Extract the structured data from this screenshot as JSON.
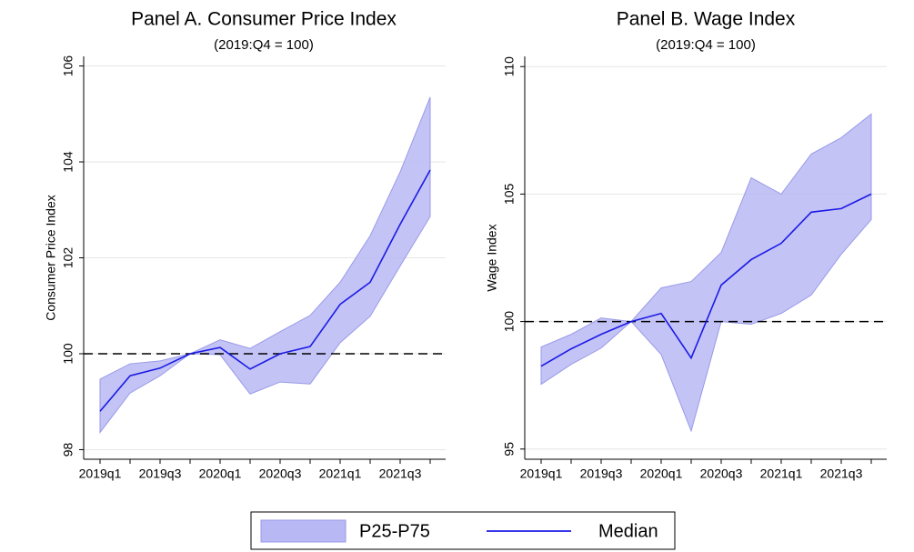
{
  "chart_data": [
    {
      "type": "band-line",
      "title": "Panel A. Consumer Price Index",
      "subtitle": "(2019:Q4 = 100)",
      "y_label": "Consumer Price Index",
      "categories": [
        "2019q1",
        null,
        "2019q3",
        null,
        "2020q1",
        null,
        "2020q3",
        null,
        "2021q1",
        null,
        "2021q3",
        null
      ],
      "series": [
        {
          "name": "P25-P75",
          "color": "#b8b8f5",
          "upper": [
            99.47,
            99.79,
            99.85,
            100,
            100.29,
            100.11,
            100.46,
            100.8,
            101.49,
            102.46,
            103.79,
            105.35
          ],
          "lower": [
            98.36,
            99.18,
            99.54,
            100,
            99.98,
            99.16,
            99.41,
            99.37,
            100.23,
            100.78,
            101.83,
            102.86
          ]
        },
        {
          "name": "Median",
          "color": "#1a1ae6",
          "values": [
            98.8,
            99.54,
            99.7,
            100,
            100.13,
            99.68,
            100.0,
            100.15,
            101.03,
            101.49,
            102.7,
            103.83
          ]
        }
      ],
      "ylim": [
        97.8,
        106.2
      ],
      "yticks": [
        98,
        100,
        102,
        104,
        106
      ],
      "refline": 100,
      "grid": true
    },
    {
      "type": "band-line",
      "title": "Panel B. Wage Index",
      "subtitle": "(2019:Q4 = 100)",
      "y_label": "Wage Index",
      "categories": [
        "2019q1",
        null,
        "2019q3",
        null,
        "2020q1",
        null,
        "2020q3",
        null,
        "2021q1",
        null,
        "2021q3",
        null
      ],
      "series": [
        {
          "name": "P25-P75",
          "color": "#b8b8f5",
          "upper": [
            99,
            99.5,
            100.14,
            100,
            101.32,
            101.57,
            102.71,
            105.64,
            105,
            106.57,
            107.21,
            108.14
          ],
          "lower": [
            97.54,
            98.32,
            98.96,
            100,
            98.71,
            95.71,
            100,
            99.89,
            100.32,
            101.04,
            102.64,
            104
          ]
        },
        {
          "name": "Median",
          "color": "#1a1ae6",
          "values": [
            98.25,
            98.93,
            99.5,
            100,
            100.32,
            98.57,
            101.43,
            102.43,
            103.07,
            104.29,
            104.43,
            105
          ]
        }
      ],
      "ylim": [
        94.6,
        110.4
      ],
      "yticks": [
        95,
        100,
        105,
        110
      ],
      "refline": 100,
      "grid": true
    }
  ]
}
